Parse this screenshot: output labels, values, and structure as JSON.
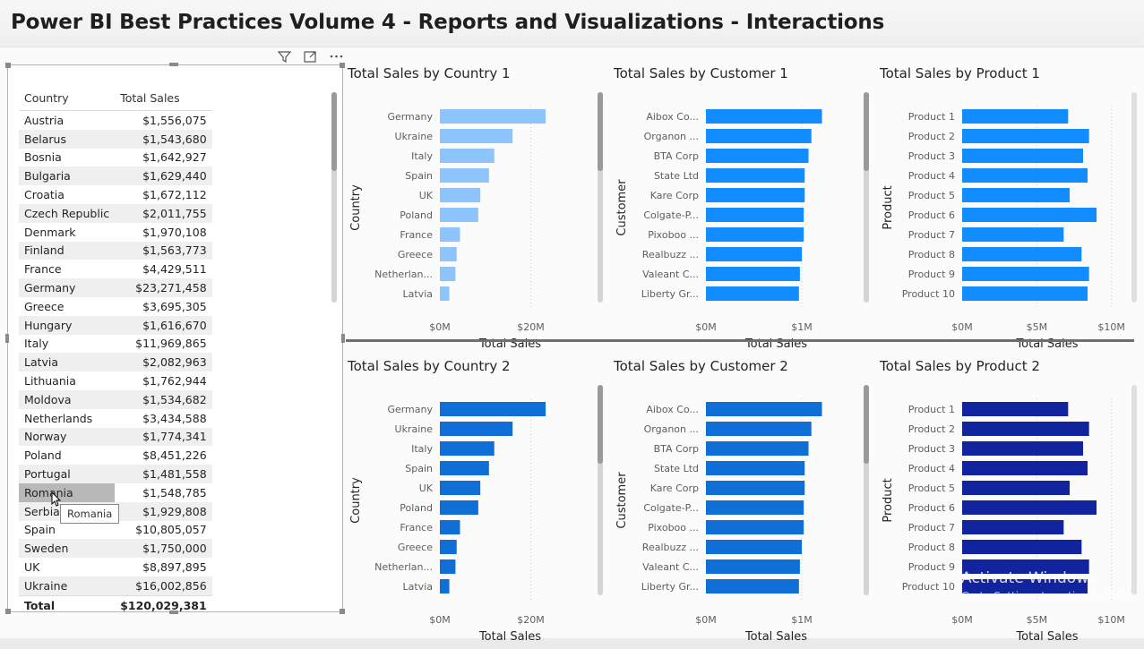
{
  "title": "Power BI Best Practices Volume 4 - Reports and Visualizations - Interactions",
  "table": {
    "headers": [
      "Country",
      "Total Sales"
    ],
    "rows": [
      [
        "Austria",
        "$1,556,075"
      ],
      [
        "Belarus",
        "$1,543,680"
      ],
      [
        "Bosnia",
        "$1,642,927"
      ],
      [
        "Bulgaria",
        "$1,629,440"
      ],
      [
        "Croatia",
        "$1,672,112"
      ],
      [
        "Czech Republic",
        "$2,011,755"
      ],
      [
        "Denmark",
        "$1,970,108"
      ],
      [
        "Finland",
        "$1,563,773"
      ],
      [
        "France",
        "$4,429,511"
      ],
      [
        "Germany",
        "$23,271,458"
      ],
      [
        "Greece",
        "$3,695,305"
      ],
      [
        "Hungary",
        "$1,616,670"
      ],
      [
        "Italy",
        "$11,969,865"
      ],
      [
        "Latvia",
        "$2,082,963"
      ],
      [
        "Lithuania",
        "$1,762,944"
      ],
      [
        "Moldova",
        "$1,534,682"
      ],
      [
        "Netherlands",
        "$3,434,588"
      ],
      [
        "Norway",
        "$1,774,341"
      ],
      [
        "Poland",
        "$8,451,226"
      ],
      [
        "Portugal",
        "$1,481,558"
      ],
      [
        "Romania",
        "$1,548,785"
      ],
      [
        "Serbia",
        "$1,929,808"
      ],
      [
        "Spain",
        "$10,805,057"
      ],
      [
        "Sweden",
        "$1,750,000"
      ],
      [
        "UK",
        "$8,897,895"
      ],
      [
        "Ukraine",
        "$16,002,856"
      ]
    ],
    "total": [
      "Total",
      "$120,029,381"
    ],
    "hovered_row": "Romania",
    "tooltip": "Romania"
  },
  "icons": {
    "filter": "filter-icon",
    "focus": "focus-mode-icon",
    "more": "more-options-icon"
  },
  "colors": {
    "light_blue": "#8cc4fb",
    "blue_1": "#118dff",
    "blue_2": "#0f6fd6",
    "navy": "#12239e"
  },
  "chart_data": [
    {
      "type": "bar",
      "orientation": "horizontal",
      "title": "Total Sales by Country 1",
      "xlabel": "Total Sales",
      "ylabel": "Country",
      "categories": [
        "Germany",
        "Ukraine",
        "Italy",
        "Spain",
        "UK",
        "Poland",
        "France",
        "Greece",
        "Netherlan...",
        "Latvia"
      ],
      "values": [
        23271458,
        16002856,
        11969865,
        10805057,
        8897895,
        8451226,
        4429511,
        3695305,
        3434588,
        2082963
      ],
      "xlim": [
        0,
        27000000
      ],
      "xticks": [
        "$0M",
        "$20M"
      ],
      "xtick_values": [
        0,
        20000000
      ],
      "color": "#8cc4fb",
      "scrollbar": true
    },
    {
      "type": "bar",
      "orientation": "horizontal",
      "title": "Total Sales by Customer 1",
      "xlabel": "Total Sales",
      "ylabel": "Customer",
      "categories": [
        "Aibox Co...",
        "Organon ...",
        "BTA Corp",
        "State Ltd",
        "Kare Corp",
        "Colgate-P...",
        "Pixoboo ...",
        "Realbuzz ...",
        "Valeant C...",
        "Liberty Gr..."
      ],
      "values": [
        1210000,
        1100000,
        1070000,
        1030000,
        1030000,
        1020000,
        1020000,
        1000000,
        980000,
        970000
      ],
      "xlim": [
        0,
        1280000
      ],
      "xticks": [
        "$0M",
        "$1M"
      ],
      "xtick_values": [
        0,
        1000000
      ],
      "color": "#118dff",
      "scrollbar": true
    },
    {
      "type": "bar",
      "orientation": "horizontal",
      "title": "Total Sales by Product 1",
      "xlabel": "Total Sales",
      "ylabel": "Product",
      "categories": [
        "Product 1",
        "Product 2",
        "Product 3",
        "Product 4",
        "Product 5",
        "Product 6",
        "Product 7",
        "Product 8",
        "Product 9",
        "Product 10"
      ],
      "values": [
        7100000,
        8500000,
        8100000,
        8400000,
        7200000,
        9000000,
        6800000,
        8000000,
        8500000,
        8400000
      ],
      "xlim": [
        0,
        10200000
      ],
      "xticks": [
        "$0M",
        "$5M",
        "$10M"
      ],
      "xtick_values": [
        0,
        5000000,
        10000000
      ],
      "color": "#118dff",
      "scrollbar": true
    },
    {
      "type": "bar",
      "orientation": "horizontal",
      "title": "Total Sales by Country 2",
      "xlabel": "Total Sales",
      "ylabel": "Country",
      "categories": [
        "Germany",
        "Ukraine",
        "Italy",
        "Spain",
        "UK",
        "Poland",
        "France",
        "Greece",
        "Netherlan...",
        "Latvia"
      ],
      "values": [
        23271458,
        16002856,
        11969865,
        10805057,
        8897895,
        8451226,
        4429511,
        3695305,
        3434588,
        2082963
      ],
      "xlim": [
        0,
        27000000
      ],
      "xticks": [
        "$0M",
        "$20M"
      ],
      "xtick_values": [
        0,
        20000000
      ],
      "color": "#0f6fd6",
      "scrollbar": false
    },
    {
      "type": "bar",
      "orientation": "horizontal",
      "title": "Total Sales by Customer 2",
      "xlabel": "Total Sales",
      "ylabel": "Customer",
      "categories": [
        "Aibox Co...",
        "Organon ...",
        "BTA Corp",
        "State Ltd",
        "Kare Corp",
        "Colgate-P...",
        "Pixoboo ...",
        "Realbuzz ...",
        "Valeant C...",
        "Liberty Gr..."
      ],
      "values": [
        1210000,
        1100000,
        1070000,
        1030000,
        1030000,
        1020000,
        1020000,
        1000000,
        980000,
        970000
      ],
      "xlim": [
        0,
        1280000
      ],
      "xticks": [
        "$0M",
        "$1M"
      ],
      "xtick_values": [
        0,
        1000000
      ],
      "color": "#0f6fd6",
      "scrollbar": true
    },
    {
      "type": "bar",
      "orientation": "horizontal",
      "title": "Total Sales by Product 2",
      "xlabel": "Total Sales",
      "ylabel": "Product",
      "categories": [
        "Product 1",
        "Product 2",
        "Product 3",
        "Product 4",
        "Product 5",
        "Product 6",
        "Product 7",
        "Product 8",
        "Product 9",
        "Product 10"
      ],
      "values": [
        7100000,
        8500000,
        8100000,
        8400000,
        7200000,
        9000000,
        6800000,
        8000000,
        8500000,
        8400000
      ],
      "xlim": [
        0,
        10200000
      ],
      "xticks": [
        "$0M",
        "$5M",
        "$10M"
      ],
      "xtick_values": [
        0,
        5000000,
        10000000
      ],
      "color": "#12239e",
      "scrollbar": true
    }
  ],
  "watermark": {
    "line1": "Activate Windows",
    "line2": "Go to Settings to activate Windows."
  }
}
